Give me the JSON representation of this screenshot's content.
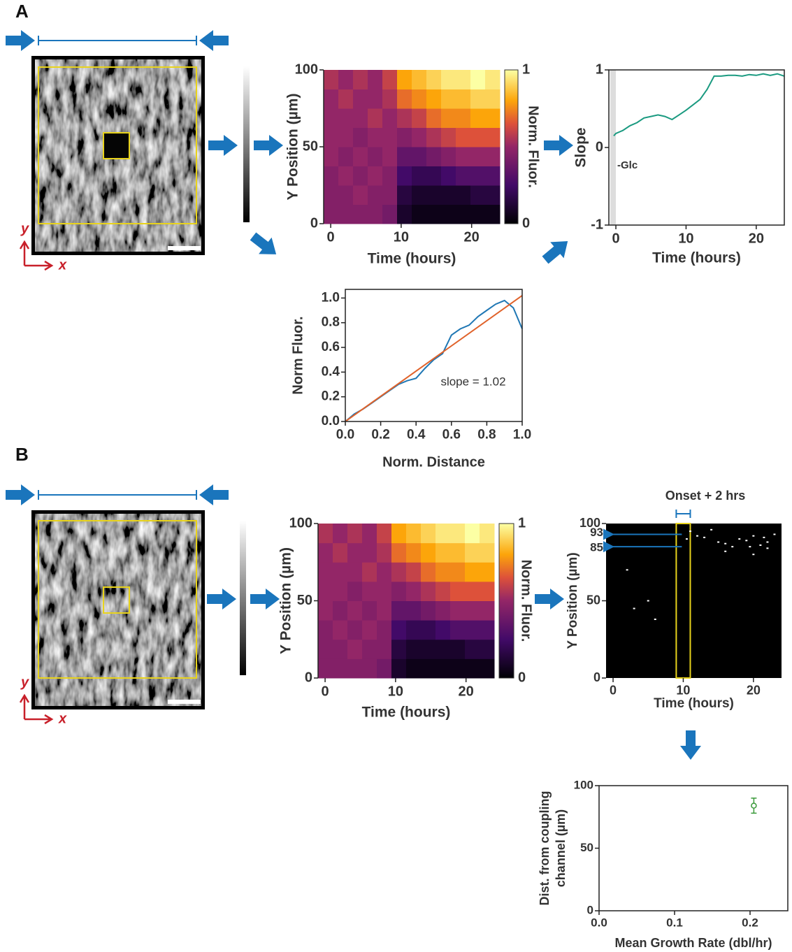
{
  "panels": [
    "A",
    "B"
  ],
  "image_axes": [
    "x",
    "y"
  ],
  "chart_data": [
    {
      "type": "heatmap",
      "xlabel": "Time (hours)",
      "ylabel": "Y Position (µm)",
      "xlim": [
        -1,
        24
      ],
      "xticks": [
        0,
        10,
        20
      ],
      "ylim": [
        0,
        100
      ],
      "yticks": [
        0,
        50,
        100
      ],
      "clim": [
        0,
        1
      ],
      "cticks": [
        0,
        1
      ],
      "clabel": "Norm. Fluor.",
      "z": [
        [
          0.45,
          0.45,
          0.45,
          0.45,
          0.4,
          0.1,
          0.05,
          0.05,
          0.05,
          0.05,
          0.05,
          0.05
        ],
        [
          0.45,
          0.45,
          0.5,
          0.45,
          0.45,
          0.15,
          0.1,
          0.1,
          0.1,
          0.1,
          0.15,
          0.15
        ],
        [
          0.45,
          0.5,
          0.45,
          0.5,
          0.45,
          0.25,
          0.2,
          0.2,
          0.25,
          0.3,
          0.3,
          0.3
        ],
        [
          0.5,
          0.45,
          0.5,
          0.45,
          0.5,
          0.35,
          0.35,
          0.4,
          0.45,
          0.5,
          0.5,
          0.5
        ],
        [
          0.5,
          0.5,
          0.45,
          0.5,
          0.5,
          0.45,
          0.5,
          0.55,
          0.6,
          0.65,
          0.65,
          0.65
        ],
        [
          0.5,
          0.5,
          0.5,
          0.55,
          0.5,
          0.55,
          0.6,
          0.7,
          0.75,
          0.75,
          0.8,
          0.8
        ],
        [
          0.5,
          0.55,
          0.5,
          0.5,
          0.55,
          0.7,
          0.75,
          0.8,
          0.85,
          0.85,
          0.9,
          0.9
        ],
        [
          0.55,
          0.5,
          0.55,
          0.5,
          0.6,
          0.8,
          0.85,
          0.9,
          0.95,
          0.95,
          1.0,
          0.95
        ]
      ]
    },
    {
      "type": "line",
      "xlabel": "Time (hours)",
      "ylabel": "Slope",
      "xlim": [
        -1,
        24
      ],
      "xticks": [
        0,
        10,
        20
      ],
      "ylim": [
        -1,
        1
      ],
      "yticks": [
        -1,
        0,
        1
      ],
      "span": [
        -0.8,
        0
      ],
      "annotation": "-Glc",
      "series": [
        {
          "color": "#1a9a80",
          "x": [
            -0.3,
            0,
            1,
            2,
            3,
            4,
            5,
            6,
            7,
            8,
            9,
            10,
            11,
            12,
            13,
            14,
            15,
            16,
            17,
            18,
            19,
            20,
            21,
            22,
            23,
            24
          ],
          "values": [
            0.15,
            0.18,
            0.22,
            0.28,
            0.32,
            0.38,
            0.4,
            0.42,
            0.4,
            0.36,
            0.42,
            0.48,
            0.55,
            0.62,
            0.75,
            0.92,
            0.92,
            0.93,
            0.93,
            0.92,
            0.94,
            0.93,
            0.95,
            0.93,
            0.95,
            0.92
          ]
        }
      ]
    },
    {
      "type": "line",
      "xlabel": "Norm. Distance",
      "ylabel": "Norm Fluor.",
      "xlim": [
        0,
        1
      ],
      "xticks": [
        {
          "value": 0,
          "label": "0.0"
        },
        {
          "value": 0.2,
          "label": "0.2"
        },
        {
          "value": 0.4,
          "label": "0.4"
        },
        {
          "value": 0.6,
          "label": "0.6"
        },
        {
          "value": 0.8,
          "label": "0.8"
        },
        {
          "value": 1,
          "label": "1.0"
        }
      ],
      "ylim": [
        0,
        1.07
      ],
      "yticks": [
        {
          "value": 0,
          "label": "0.0"
        },
        {
          "value": 0.2,
          "label": "0.2"
        },
        {
          "value": 0.4,
          "label": "0.4"
        },
        {
          "value": 0.6,
          "label": "0.6"
        },
        {
          "value": 0.8,
          "label": "0.8"
        },
        {
          "value": 1,
          "label": "1.0"
        }
      ],
      "annotation": "slope = 1.02",
      "series": [
        {
          "color": "#1f77b4",
          "x": [
            0,
            0.05,
            0.1,
            0.15,
            0.2,
            0.25,
            0.3,
            0.35,
            0.4,
            0.45,
            0.5,
            0.55,
            0.6,
            0.65,
            0.7,
            0.75,
            0.8,
            0.85,
            0.9,
            0.95,
            1.0
          ],
          "values": [
            0,
            0.06,
            0.1,
            0.15,
            0.2,
            0.25,
            0.3,
            0.33,
            0.35,
            0.43,
            0.5,
            0.55,
            0.7,
            0.75,
            0.78,
            0.85,
            0.9,
            0.95,
            0.98,
            0.92,
            0.75
          ]
        },
        {
          "color": "#e0622a",
          "x": [
            0,
            1
          ],
          "values": [
            0,
            1.02
          ]
        }
      ]
    },
    {
      "type": "heatmap",
      "xlabel": "Time (hours)",
      "ylabel": "Y Position (µm)",
      "xlim": [
        -1,
        24
      ],
      "xticks": [
        0,
        10,
        20
      ],
      "ylim": [
        0,
        100
      ],
      "yticks": [
        0,
        50,
        100
      ],
      "clim": [
        0,
        1
      ],
      "cticks": [
        0,
        1
      ],
      "clabel": "Norm. Fluor.",
      "z": [
        [
          0.45,
          0.45,
          0.45,
          0.45,
          0.4,
          0.1,
          0.05,
          0.05,
          0.05,
          0.05,
          0.05,
          0.05
        ],
        [
          0.45,
          0.45,
          0.5,
          0.45,
          0.45,
          0.15,
          0.1,
          0.1,
          0.1,
          0.1,
          0.15,
          0.15
        ],
        [
          0.45,
          0.5,
          0.45,
          0.5,
          0.45,
          0.25,
          0.2,
          0.2,
          0.25,
          0.3,
          0.3,
          0.3
        ],
        [
          0.5,
          0.45,
          0.5,
          0.45,
          0.5,
          0.35,
          0.35,
          0.4,
          0.45,
          0.5,
          0.5,
          0.5
        ],
        [
          0.5,
          0.5,
          0.45,
          0.5,
          0.5,
          0.45,
          0.5,
          0.55,
          0.6,
          0.65,
          0.65,
          0.65
        ],
        [
          0.5,
          0.5,
          0.5,
          0.55,
          0.5,
          0.55,
          0.6,
          0.7,
          0.75,
          0.75,
          0.8,
          0.8
        ],
        [
          0.5,
          0.55,
          0.5,
          0.5,
          0.55,
          0.7,
          0.75,
          0.8,
          0.85,
          0.85,
          0.9,
          0.9
        ],
        [
          0.55,
          0.5,
          0.55,
          0.5,
          0.6,
          0.8,
          0.85,
          0.9,
          0.95,
          0.95,
          1.0,
          0.95
        ]
      ]
    },
    {
      "type": "scatter",
      "title": "Onset + 2 hrs",
      "xlabel": "Time (hours)",
      "ylabel": "Y Position (µm)",
      "xlim": [
        -1,
        24
      ],
      "xticks": [
        0,
        10,
        20
      ],
      "ylim": [
        0,
        100
      ],
      "yticks": [
        0,
        50,
        100
      ],
      "window": [
        9,
        11
      ],
      "marked_y": [
        93,
        85
      ],
      "series": [
        {
          "color": "#ffffff",
          "x": [
            12,
            13,
            15,
            16,
            18,
            19,
            20,
            21,
            22,
            23,
            11,
            14,
            17,
            3,
            6,
            5,
            9.5,
            20,
            22,
            16,
            2,
            10.5,
            19.5,
            21.5
          ],
          "values": [
            92,
            91,
            88,
            87,
            90,
            89,
            92,
            86,
            88,
            93,
            95,
            96,
            85,
            45,
            38,
            50,
            93,
            80,
            84,
            82,
            70,
            90,
            85,
            91
          ]
        }
      ]
    },
    {
      "type": "scatter",
      "xlabel": "Mean Growth Rate (dbl/hr)",
      "ylabel": [
        "Dist. from coupling",
        "channel (µm)"
      ],
      "xlim": [
        0,
        0.25
      ],
      "xticks": [
        {
          "value": 0,
          "label": "0.0"
        },
        {
          "value": 0.1,
          "label": "0.1"
        },
        {
          "value": 0.2,
          "label": "0.2"
        }
      ],
      "ylim": [
        0,
        100
      ],
      "yticks": [
        0,
        50,
        100
      ],
      "series": [
        {
          "color": "#3a9a3a",
          "x": [
            0.205
          ],
          "values": [
            84
          ],
          "errors": [
            6
          ]
        }
      ]
    }
  ]
}
